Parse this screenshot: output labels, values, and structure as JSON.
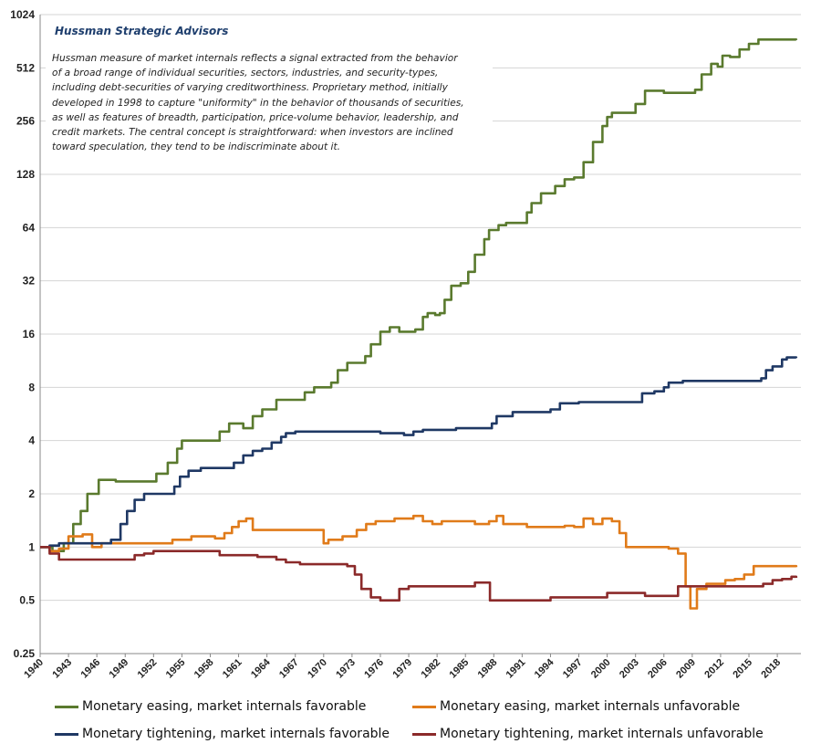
{
  "chart_data": {
    "type": "line",
    "title": "",
    "xlabel": "",
    "ylabel": "",
    "y_scale": "log2",
    "ylim": [
      0.25,
      1024
    ],
    "xlim": [
      1940,
      2020.5
    ],
    "grid": "horizontal",
    "legend_position": "bottom",
    "y_ticks": [
      "1024",
      "512",
      "256",
      "128",
      "64",
      "32",
      "16",
      "8",
      "4",
      "2",
      "1",
      "0.5",
      "0.25"
    ],
    "x_ticks": [
      "1940",
      "1943",
      "1946",
      "1949",
      "1952",
      "1955",
      "1958",
      "1961",
      "1964",
      "1967",
      "1970",
      "1973",
      "1976",
      "1979",
      "1982",
      "1985",
      "1988",
      "1991",
      "1994",
      "1997",
      "2000",
      "2003",
      "2006",
      "2009",
      "2012",
      "2015",
      "2018"
    ],
    "annotation": {
      "title": "Hussman Strategic Advisors",
      "lines": [
        "Hussman measure of market internals reflects a signal extracted from the behavior",
        "of a broad range of individual securities, sectors, industries, and security-types,",
        "including debt-securities of varying creditworthiness.  Proprietary method, initially",
        "developed in 1998  to capture \"uniformity\" in the behavior of thousands of securities,",
        "as well as features of breadth, participation, price-volume behavior, leadership, and",
        "credit markets. The central concept is straightforward: when investors are inclined",
        "toward speculation, they tend to be indiscriminate  about it."
      ]
    },
    "series": [
      {
        "name": "Monetary easing, market internals favorable",
        "color": "#5a7a2e",
        "x": [
          1940,
          1941.3,
          1942.5,
          1943.5,
          1944.3,
          1945,
          1946.2,
          1948,
          1950,
          1951.5,
          1952.3,
          1953.5,
          1954.5,
          1955,
          1956.5,
          1957.5,
          1958.3,
          1959,
          1960,
          1960.8,
          1961.5,
          1962.5,
          1963.5,
          1965,
          1966.5,
          1967.5,
          1968,
          1969,
          1970,
          1970.8,
          1971.5,
          1972.5,
          1974,
          1974.4,
          1975,
          1976,
          1977,
          1978,
          1979,
          1979.7,
          1980.5,
          1981,
          1981.8,
          1982.3,
          1982.8,
          1983.5,
          1984.5,
          1985.3,
          1986,
          1987,
          1987.5,
          1988.5,
          1989.3,
          1990.5,
          1991.5,
          1992,
          1993,
          1994.5,
          1995.5,
          1996.5,
          1997.5,
          1998.5,
          1999.5,
          2000,
          2000.5,
          2001,
          2002.3,
          2003,
          2004,
          2006,
          2007.3,
          2008.5,
          2009.3,
          2010,
          2011,
          2011.7,
          2012.2,
          2013,
          2014,
          2015,
          2016,
          2017,
          2020
        ],
        "y": [
          1.0,
          0.95,
          1.05,
          1.35,
          1.6,
          2.0,
          2.4,
          2.35,
          2.35,
          2.35,
          2.6,
          3.0,
          3.6,
          4.0,
          4.0,
          4.0,
          4.0,
          4.5,
          5.0,
          5.0,
          4.7,
          5.5,
          6.0,
          6.8,
          6.8,
          6.8,
          7.5,
          8.0,
          8.0,
          8.5,
          10.0,
          11.0,
          11.0,
          12.0,
          14.0,
          16.5,
          17.5,
          16.5,
          16.5,
          17.0,
          20.0,
          21.0,
          20.5,
          21.0,
          25.0,
          30.0,
          31.0,
          36.0,
          45.0,
          55.0,
          62.0,
          66.0,
          68.0,
          68.0,
          78.0,
          88.0,
          100.0,
          110.0,
          120.0,
          123.0,
          150.0,
          195.0,
          240.0,
          270.0,
          285.0,
          285.0,
          285.0,
          320.0,
          380.0,
          370.0,
          370.0,
          370.0,
          385.0,
          470.0,
          540.0,
          520.0,
          600.0,
          590.0,
          650.0,
          700.0,
          740.0,
          740.0,
          735.0
        ]
      },
      {
        "name": "Monetary easing, market internals unfavorable",
        "color": "#e07b1a",
        "x": [
          1940,
          1941,
          1942,
          1943,
          1944.5,
          1945.5,
          1946.5,
          1948,
          1950,
          1952,
          1954,
          1956,
          1957.5,
          1958.5,
          1959.5,
          1960.3,
          1961,
          1961.8,
          1962.5,
          1964,
          1966,
          1968,
          1970,
          1970.5,
          1972,
          1973.5,
          1974.5,
          1975.5,
          1977.5,
          1979.5,
          1980.5,
          1981.5,
          1982.5,
          1984,
          1986,
          1987.5,
          1988.3,
          1989,
          1990,
          1991.5,
          1993.5,
          1995.5,
          1996.5,
          1997.5,
          1998.5,
          1999.5,
          2000.5,
          2001.3,
          2002,
          2003,
          2005,
          2006.5,
          2007.5,
          2008.3,
          2008.8,
          2009.5,
          2010.5,
          2011.5,
          2012.5,
          2013.5,
          2014.5,
          2015.5,
          2017,
          2020
        ],
        "y": [
          1.0,
          0.95,
          0.98,
          1.15,
          1.18,
          1.0,
          1.05,
          1.05,
          1.05,
          1.05,
          1.1,
          1.15,
          1.15,
          1.12,
          1.2,
          1.3,
          1.4,
          1.45,
          1.25,
          1.25,
          1.25,
          1.25,
          1.05,
          1.1,
          1.15,
          1.25,
          1.35,
          1.4,
          1.45,
          1.5,
          1.4,
          1.35,
          1.4,
          1.4,
          1.35,
          1.4,
          1.5,
          1.35,
          1.35,
          1.3,
          1.3,
          1.32,
          1.3,
          1.45,
          1.35,
          1.45,
          1.4,
          1.2,
          1.0,
          1.0,
          1.0,
          0.98,
          0.92,
          0.6,
          0.45,
          0.58,
          0.62,
          0.62,
          0.65,
          0.66,
          0.7,
          0.78,
          0.78,
          0.77
        ]
      },
      {
        "name": "Monetary tightening, market internals favorable",
        "color": "#1f3864",
        "x": [
          1940,
          1941,
          1942,
          1943.5,
          1944.5,
          1946,
          1947.5,
          1948.5,
          1949.2,
          1950,
          1951,
          1952,
          1953.5,
          1954.2,
          1954.8,
          1955.7,
          1957,
          1958.5,
          1959.5,
          1960.5,
          1961.5,
          1962.5,
          1963.5,
          1964.5,
          1965.5,
          1966,
          1967,
          1968,
          1970,
          1972,
          1974,
          1976,
          1978,
          1978.5,
          1979.5,
          1980.5,
          1982,
          1984,
          1986,
          1987.3,
          1987.8,
          1988.3,
          1990,
          1992,
          1994,
          1995,
          1997,
          2000,
          2003,
          2003.7,
          2005,
          2006,
          2006.5,
          2008,
          2010,
          2013,
          2015.5,
          2016.3,
          2016.8,
          2017.5,
          2018.5,
          2019,
          2020
        ],
        "y": [
          1.0,
          1.02,
          1.05,
          1.05,
          1.05,
          1.05,
          1.1,
          1.35,
          1.6,
          1.85,
          2.0,
          2.0,
          2.0,
          2.2,
          2.5,
          2.7,
          2.8,
          2.8,
          2.8,
          3.0,
          3.3,
          3.5,
          3.6,
          3.9,
          4.2,
          4.4,
          4.5,
          4.5,
          4.5,
          4.5,
          4.5,
          4.4,
          4.4,
          4.3,
          4.5,
          4.6,
          4.6,
          4.7,
          4.7,
          4.7,
          5.0,
          5.5,
          5.8,
          5.8,
          6.0,
          6.5,
          6.6,
          6.6,
          6.6,
          7.4,
          7.6,
          8.0,
          8.5,
          8.7,
          8.7,
          8.7,
          8.7,
          9.0,
          10.0,
          10.5,
          11.5,
          11.8,
          11.7
        ]
      },
      {
        "name": "Monetary tightening, market internals unfavorable",
        "color": "#8b2a2a",
        "x": [
          1940,
          1941,
          1942,
          1944,
          1946,
          1948,
          1950,
          1951,
          1952,
          1954,
          1956,
          1957.5,
          1959,
          1961,
          1963,
          1965,
          1966,
          1967.5,
          1969,
          1971,
          1972.5,
          1973.3,
          1974,
          1975,
          1976,
          1977,
          1978,
          1979,
          1980,
          1982,
          1984,
          1986,
          1987.2,
          1987.6,
          1989,
          1991,
          1993,
          1994,
          1996,
          1998,
          1999,
          2000,
          2002,
          2004,
          2006,
          2007.5,
          2008.5,
          2010,
          2012,
          2014,
          2015.5,
          2016.5,
          2017.5,
          2018.5,
          2019.5,
          2020
        ],
        "y": [
          1.0,
          0.92,
          0.85,
          0.85,
          0.85,
          0.85,
          0.9,
          0.92,
          0.95,
          0.95,
          0.95,
          0.95,
          0.9,
          0.9,
          0.88,
          0.85,
          0.82,
          0.8,
          0.8,
          0.8,
          0.78,
          0.7,
          0.58,
          0.52,
          0.5,
          0.5,
          0.58,
          0.6,
          0.6,
          0.6,
          0.6,
          0.63,
          0.63,
          0.5,
          0.5,
          0.5,
          0.5,
          0.52,
          0.52,
          0.52,
          0.52,
          0.55,
          0.55,
          0.53,
          0.53,
          0.6,
          0.6,
          0.6,
          0.6,
          0.6,
          0.6,
          0.62,
          0.65,
          0.66,
          0.68,
          0.67
        ]
      }
    ]
  }
}
